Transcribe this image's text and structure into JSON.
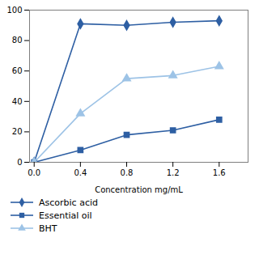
{
  "chart_data": {
    "type": "line",
    "xlabel": "Concentration mg/mL",
    "x": [
      0,
      0.4,
      0.8,
      1.2,
      1.6
    ],
    "series": [
      {
        "name": "Ascorbic acid",
        "color": "#2e5fa3",
        "marker": "diamond",
        "values": [
          0,
          91,
          90,
          92,
          93
        ]
      },
      {
        "name": "Essential oil",
        "color": "#2e5fa3",
        "marker": "square",
        "values": [
          0,
          8,
          18,
          21,
          28
        ]
      },
      {
        "name": "BHT",
        "color": "#9dc3e6",
        "marker": "triangle",
        "values": [
          0,
          32,
          55,
          57,
          63
        ]
      }
    ],
    "xlim": [
      -0.04,
      1.85
    ],
    "ylim": [
      0,
      100
    ],
    "xticks": [
      {
        "value": 0,
        "label": "0.0"
      },
      0.4,
      0.8,
      1.2,
      1.6
    ],
    "yticks": [
      0,
      20,
      40,
      60,
      80,
      100
    ],
    "grid": false,
    "legend": "bottom"
  }
}
